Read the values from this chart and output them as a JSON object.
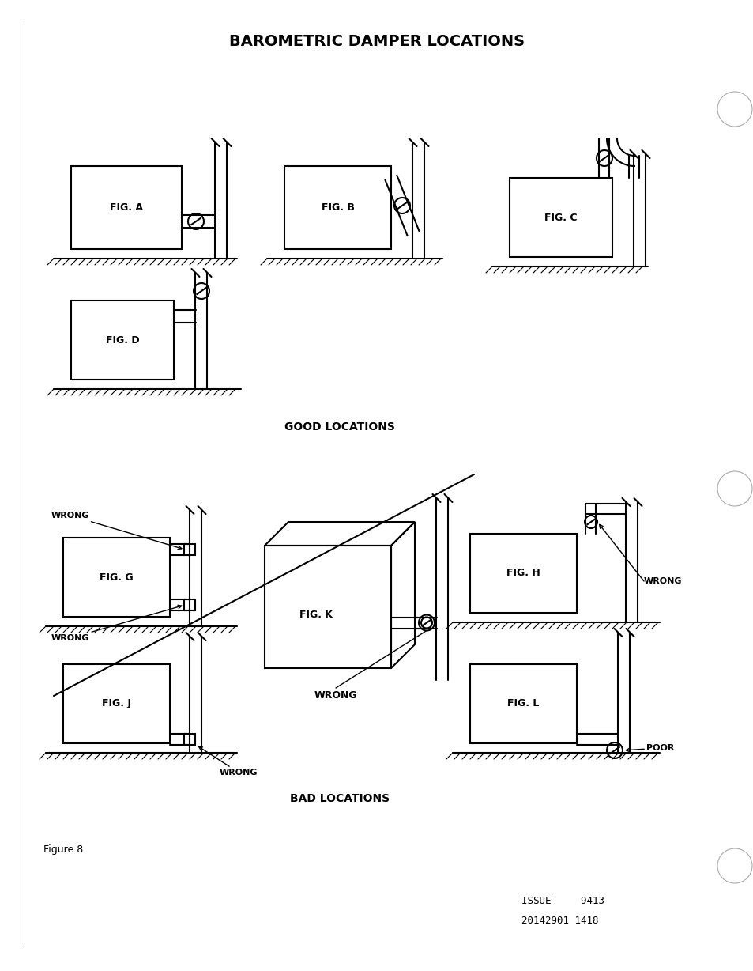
{
  "title": "BAROMETRIC DAMPER LOCATIONS",
  "good_label": "GOOD LOCATIONS",
  "bad_label": "BAD LOCATIONS",
  "figure_label": "Figure 8",
  "issue_line1": "ISSUE     9413",
  "issue_line2": "20142901 1418",
  "bg_color": "#ffffff",
  "line_color": "#000000"
}
